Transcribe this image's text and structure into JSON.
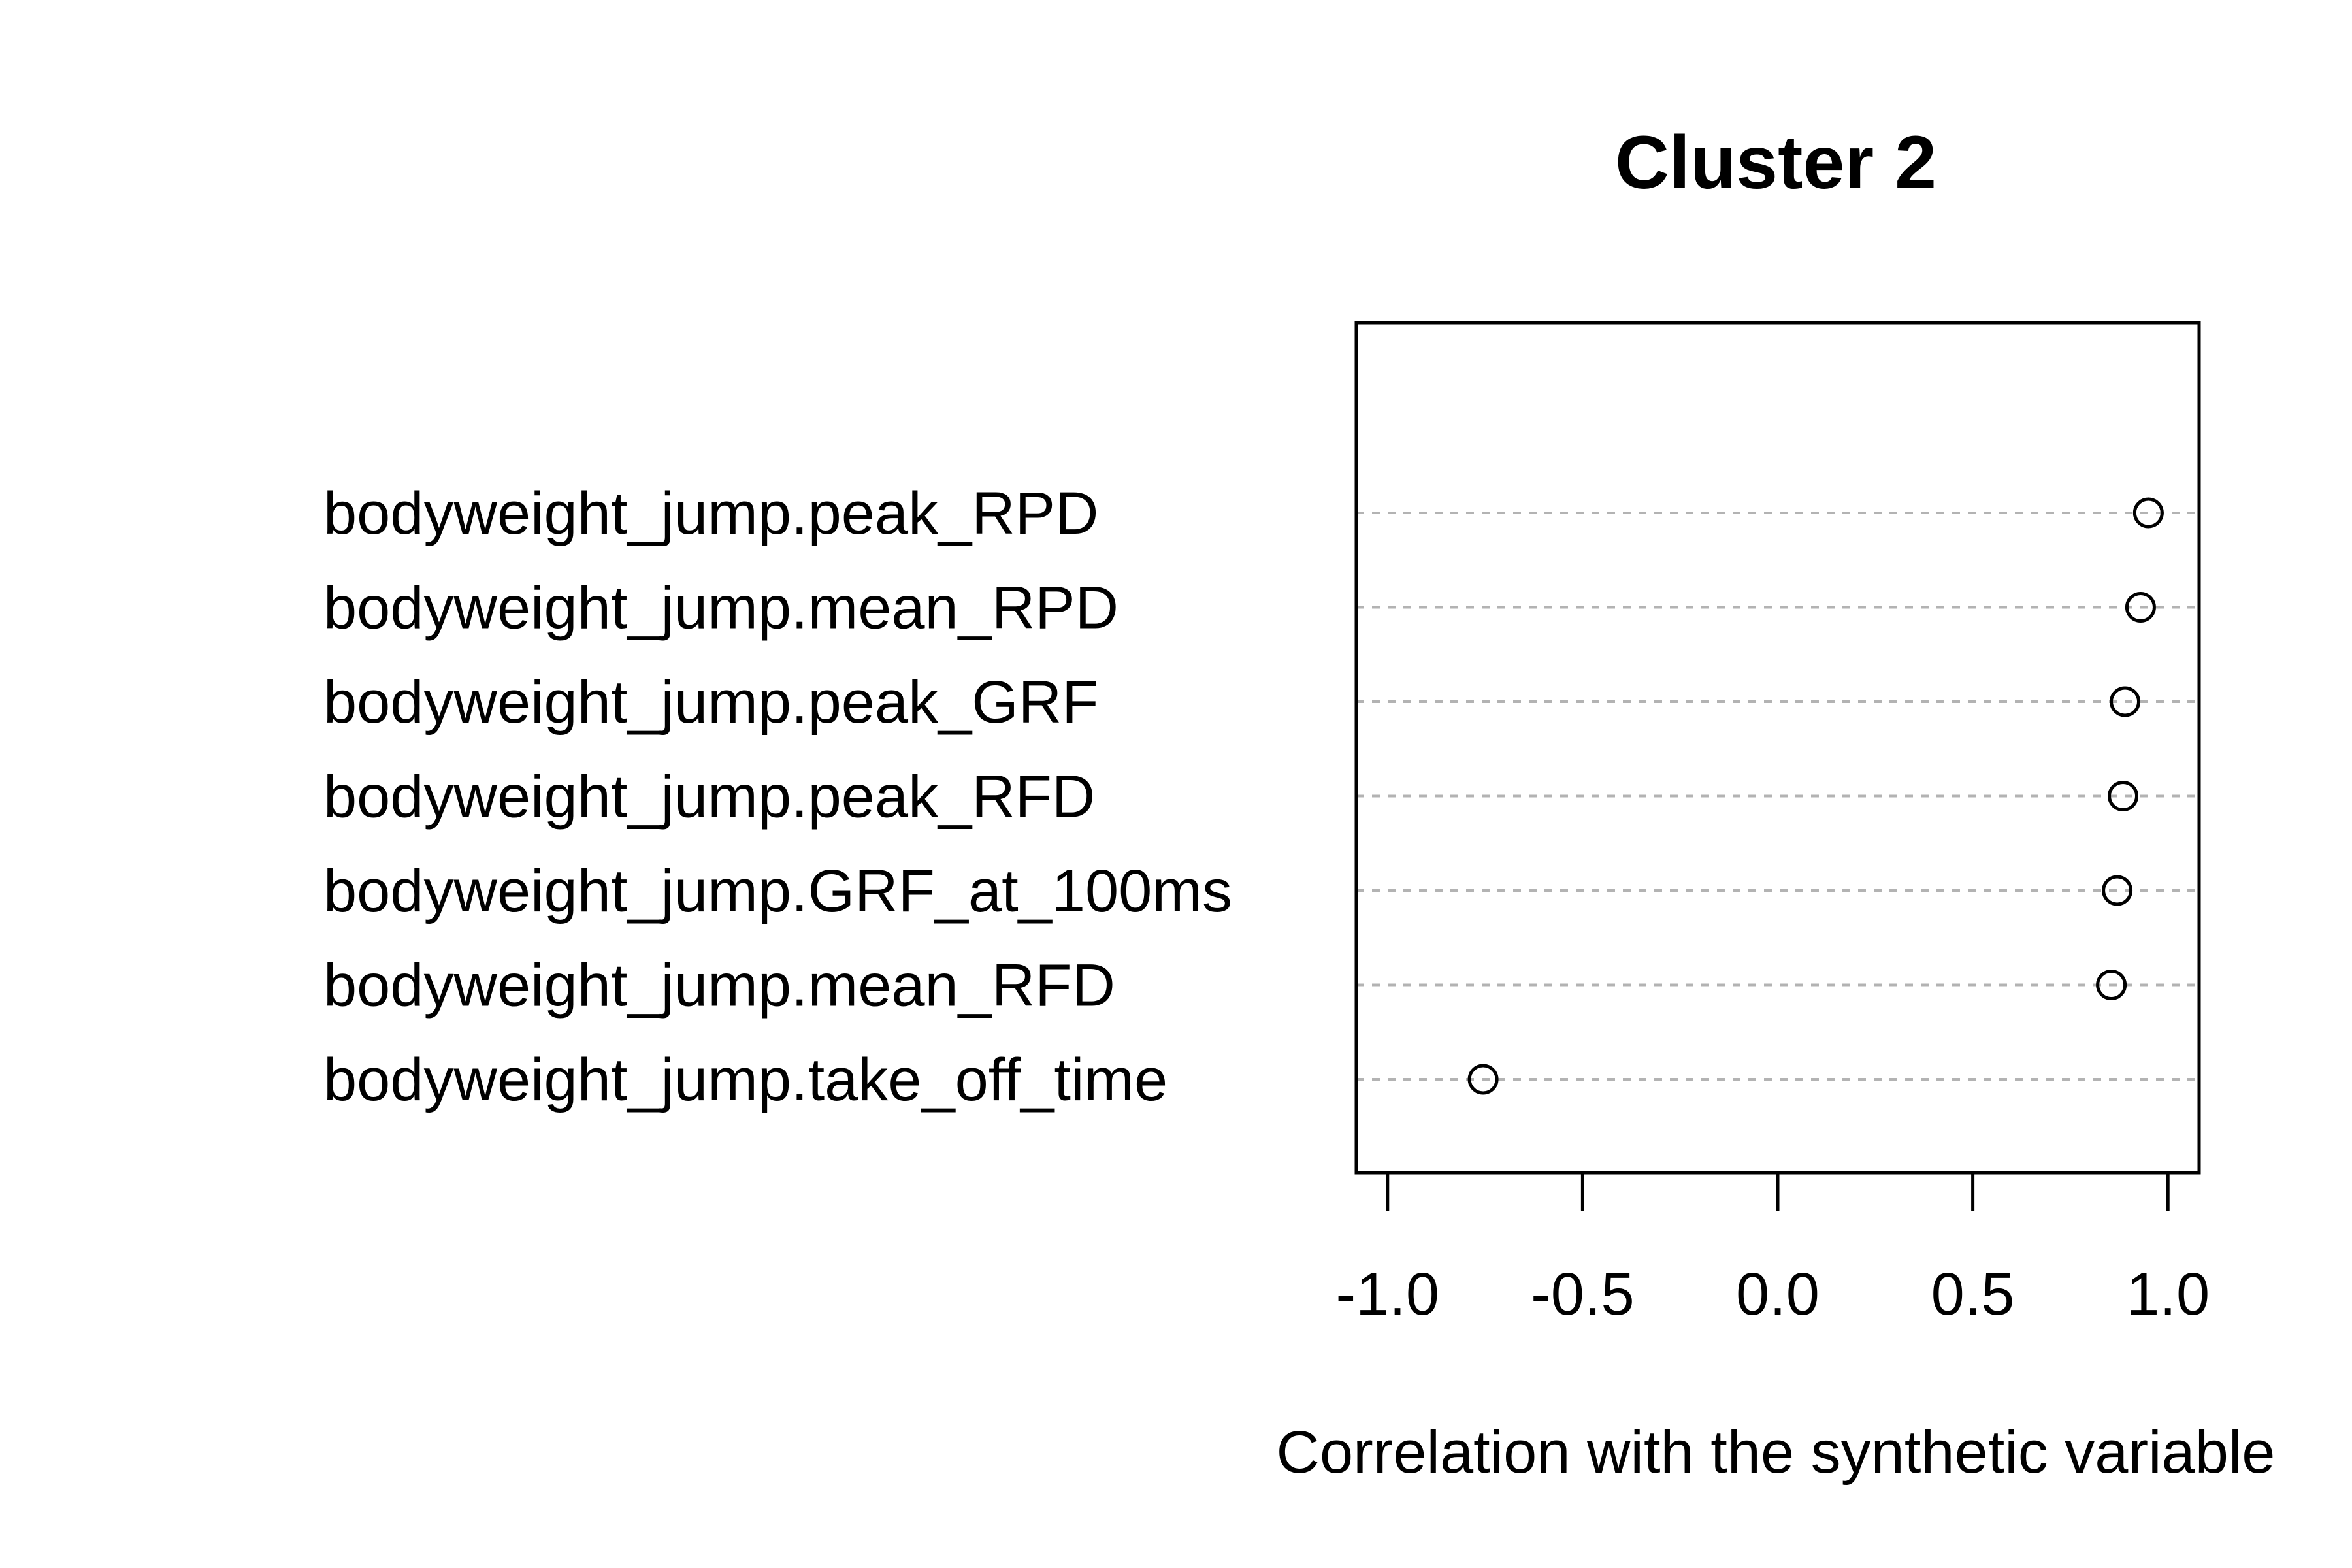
{
  "chart_data": {
    "type": "scatter",
    "title": "Cluster 2",
    "xlabel": "Correlation with the synthetic variable",
    "ylabel": "",
    "xlim": [
      -1.08,
      1.08
    ],
    "xticks": [
      -1.0,
      -0.5,
      0.0,
      0.5,
      1.0
    ],
    "xtick_labels": [
      "-1.0",
      "-0.5",
      "0.0",
      "0.5",
      "1.0"
    ],
    "grid": "dotted horizontal guide lines per row",
    "categories": [
      "bodyweight_jump.peak_RPD",
      "bodyweight_jump.mean_RPD",
      "bodyweight_jump.peak_GRF",
      "bodyweight_jump.peak_RFD",
      "bodyweight_jump.GRF_at_100ms",
      "bodyweight_jump.mean_RFD",
      "bodyweight_jump.take_off_time"
    ],
    "values": [
      0.95,
      0.93,
      0.89,
      0.885,
      0.87,
      0.855,
      -0.755
    ],
    "colors": {
      "points": "#000000",
      "guides": "#b3b3b3",
      "frame": "#000000"
    }
  }
}
